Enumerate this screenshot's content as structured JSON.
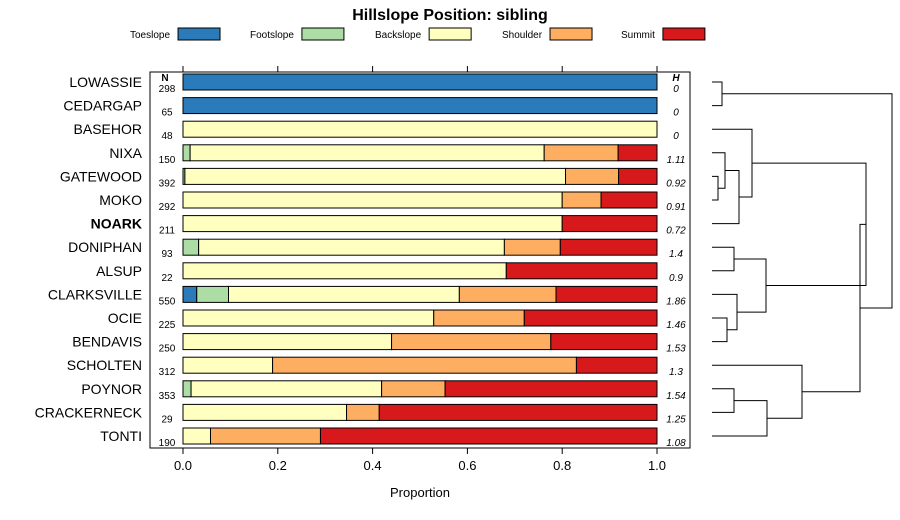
{
  "chart_data": {
    "type": "bar",
    "orientation": "horizontal",
    "stacked": true,
    "title": "Hillslope Position: sibling",
    "xlabel": "Proportion",
    "ylabel": "",
    "xlim": [
      0,
      1
    ],
    "x_ticks": [
      0.0,
      0.2,
      0.4,
      0.6,
      0.8,
      1.0
    ],
    "x_tick_labels": [
      "0.0",
      "0.2",
      "0.4",
      "0.6",
      "0.8",
      "1.0"
    ],
    "n_header": "N",
    "h_header": "H",
    "legend_position": "top",
    "series": [
      {
        "name": "Toeslope",
        "color": "#2b7bba"
      },
      {
        "name": "Footslope",
        "color": "#abdda4"
      },
      {
        "name": "Backslope",
        "color": "#ffffbf"
      },
      {
        "name": "Shoulder",
        "color": "#fdae61"
      },
      {
        "name": "Summit",
        "color": "#d7191c"
      }
    ],
    "rows": [
      {
        "label": "LOWASSIE",
        "n": "298",
        "h": "0",
        "bold": false,
        "values": [
          1.0,
          0.0,
          0.0,
          0.0,
          0.0
        ]
      },
      {
        "label": "CEDARGAP",
        "n": "65",
        "h": "0",
        "bold": false,
        "values": [
          1.0,
          0.0,
          0.0,
          0.0,
          0.0
        ]
      },
      {
        "label": "BASEHOR",
        "n": "48",
        "h": "0",
        "bold": false,
        "values": [
          0.0,
          0.0,
          1.0,
          0.0,
          0.0
        ]
      },
      {
        "label": "NIXA",
        "n": "150",
        "h": "1.11",
        "bold": false,
        "values": [
          0.0,
          0.015,
          0.747,
          0.156,
          0.082
        ]
      },
      {
        "label": "GATEWOOD",
        "n": "392",
        "h": "0.92",
        "bold": false,
        "values": [
          0.0,
          0.004,
          0.803,
          0.112,
          0.081
        ]
      },
      {
        "label": "MOKO",
        "n": "292",
        "h": "0.91",
        "bold": false,
        "values": [
          0.0,
          0.0,
          0.8,
          0.082,
          0.118
        ]
      },
      {
        "label": "NOARK",
        "n": "211",
        "h": "0.72",
        "bold": true,
        "values": [
          0.0,
          0.0,
          0.8,
          0.0,
          0.2
        ]
      },
      {
        "label": "DONIPHAN",
        "n": "93",
        "h": "1.4",
        "bold": false,
        "values": [
          0.0,
          0.033,
          0.645,
          0.118,
          0.204
        ]
      },
      {
        "label": "ALSUP",
        "n": "22",
        "h": "0.9",
        "bold": false,
        "values": [
          0.0,
          0.0,
          0.682,
          0.0,
          0.318
        ]
      },
      {
        "label": "CLARKSVILLE",
        "n": "550",
        "h": "1.86",
        "bold": false,
        "values": [
          0.029,
          0.067,
          0.487,
          0.204,
          0.213
        ]
      },
      {
        "label": "OCIE",
        "n": "225",
        "h": "1.46",
        "bold": false,
        "values": [
          0.0,
          0.0,
          0.529,
          0.191,
          0.28
        ]
      },
      {
        "label": "BENDAVIS",
        "n": "250",
        "h": "1.53",
        "bold": false,
        "values": [
          0.0,
          0.0,
          0.44,
          0.336,
          0.224
        ]
      },
      {
        "label": "SCHOLTEN",
        "n": "312",
        "h": "1.3",
        "bold": false,
        "values": [
          0.0,
          0.0,
          0.189,
          0.641,
          0.17
        ]
      },
      {
        "label": "POYNOR",
        "n": "353",
        "h": "1.54",
        "bold": false,
        "values": [
          0.0,
          0.017,
          0.402,
          0.134,
          0.447
        ]
      },
      {
        "label": "CRACKERNECK",
        "n": "29",
        "h": "1.25",
        "bold": false,
        "values": [
          0.0,
          0.0,
          0.345,
          0.069,
          0.586
        ]
      },
      {
        "label": "TONTI",
        "n": "190",
        "h": "1.08",
        "bold": false,
        "values": [
          0.0,
          0.0,
          0.058,
          0.232,
          0.71
        ]
      }
    ]
  }
}
